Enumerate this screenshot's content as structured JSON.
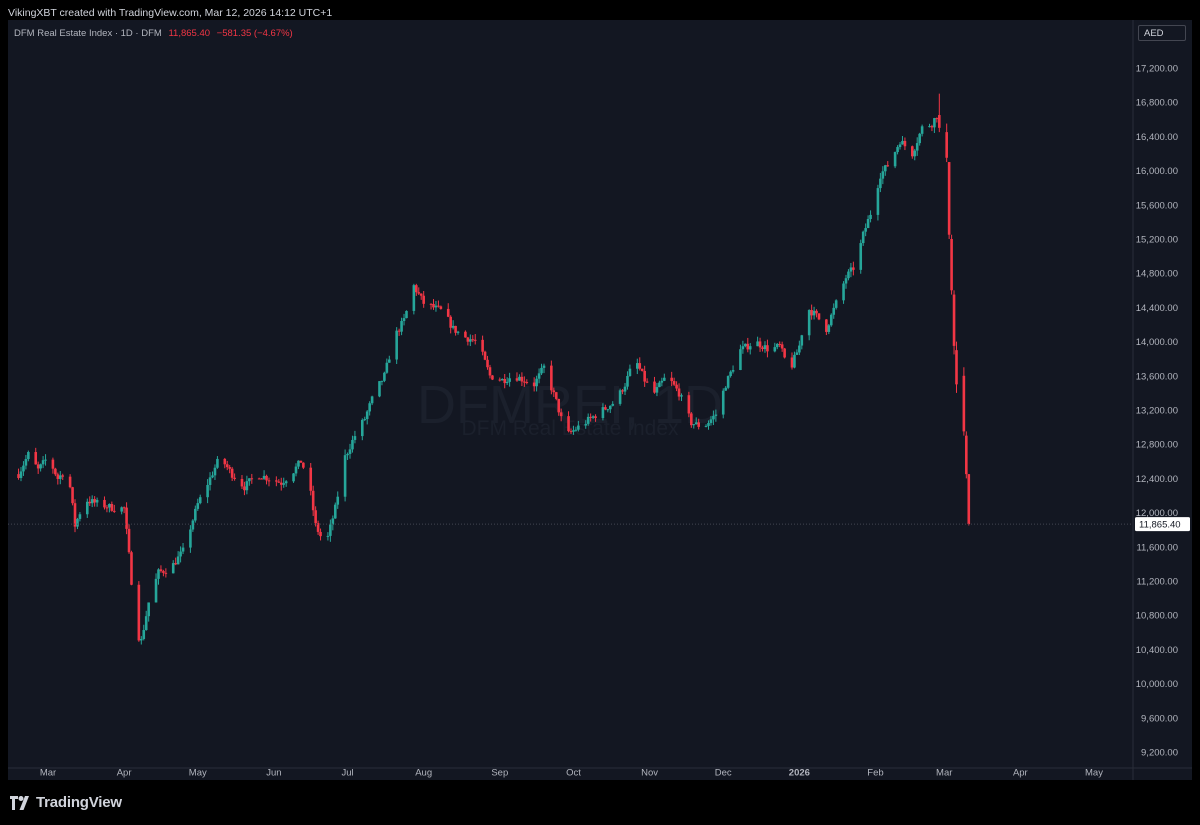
{
  "header": {
    "attribution": "VikingXBT created with TradingView.com, Mar 12, 2026 14:12 UTC+1"
  },
  "legend": {
    "symbol": "DFM Real Estate Index · 1D · DFM",
    "last": "11,865.40",
    "change": "−581.35 (−4.67%)"
  },
  "currency_button": "AED",
  "watermark": {
    "ticker": "DFMREI, 1D",
    "name": "DFM Real Estate Index"
  },
  "footer": {
    "brand": "TradingView"
  },
  "colors": {
    "background": "#131722",
    "up": "#26a69a",
    "down": "#f23645",
    "text": "#b2b5be"
  },
  "chart_data": {
    "type": "candlestick",
    "title": "DFM Real Estate Index · 1D · DFM",
    "ylim": [
      8800,
      17600
    ],
    "y_ticks": [
      "17,200.00",
      "16,800.00",
      "16,400.00",
      "16,000.00",
      "15,600.00",
      "15,200.00",
      "14,800.00",
      "14,400.00",
      "14,000.00",
      "13,600.00",
      "13,200.00",
      "12,800.00",
      "12,400.00",
      "12,000.00",
      "11,600.00",
      "11,200.00",
      "10,800.00",
      "10,400.00",
      "10,000.00",
      "9,600.00",
      "9,200.00"
    ],
    "x_ticks": [
      {
        "label": "Mar",
        "date": "2025-03-01"
      },
      {
        "label": "Apr",
        "date": "2025-04-01"
      },
      {
        "label": "May",
        "date": "2025-05-01"
      },
      {
        "label": "Jun",
        "date": "2025-06-01"
      },
      {
        "label": "Jul",
        "date": "2025-07-01"
      },
      {
        "label": "Aug",
        "date": "2025-08-01"
      },
      {
        "label": "Sep",
        "date": "2025-09-01"
      },
      {
        "label": "Oct",
        "date": "2025-10-01"
      },
      {
        "label": "Nov",
        "date": "2025-11-01"
      },
      {
        "label": "Dec",
        "date": "2025-12-01"
      },
      {
        "label": "2026",
        "date": "2026-01-01"
      },
      {
        "label": "Feb",
        "date": "2026-02-01"
      },
      {
        "label": "Mar",
        "date": "2026-03-01"
      },
      {
        "label": "Apr",
        "date": "2026-04-01"
      },
      {
        "label": "May",
        "date": "2026-05-01"
      }
    ],
    "last_price_label": "11,865.40",
    "last_price": 11865.4,
    "series": [
      {
        "anchors": [
          [
            "2025-02-17",
            12450
          ],
          [
            "2025-02-21",
            12680
          ],
          [
            "2025-02-25",
            12500
          ],
          [
            "2025-03-01",
            12650
          ],
          [
            "2025-03-05",
            12400
          ],
          [
            "2025-03-09",
            12520
          ],
          [
            "2025-03-12",
            11850
          ],
          [
            "2025-03-16",
            12150
          ],
          [
            "2025-03-22",
            12100
          ],
          [
            "2025-03-28",
            12050
          ],
          [
            "2025-04-01",
            12050
          ],
          [
            "2025-04-03",
            11500
          ],
          [
            "2025-04-06",
            10600
          ],
          [
            "2025-04-08",
            10500
          ],
          [
            "2025-04-11",
            10950
          ],
          [
            "2025-04-15",
            11300
          ],
          [
            "2025-04-20",
            11350
          ],
          [
            "2025-04-25",
            11550
          ],
          [
            "2025-05-01",
            12100
          ],
          [
            "2025-05-06",
            12400
          ],
          [
            "2025-05-10",
            12650
          ],
          [
            "2025-05-15",
            12450
          ],
          [
            "2025-05-20",
            12300
          ],
          [
            "2025-05-25",
            12450
          ],
          [
            "2025-05-30",
            12400
          ],
          [
            "2025-06-04",
            12350
          ],
          [
            "2025-06-08",
            12450
          ],
          [
            "2025-06-12",
            12600
          ],
          [
            "2025-06-15",
            12400
          ],
          [
            "2025-06-18",
            11850
          ],
          [
            "2025-06-22",
            11600
          ],
          [
            "2025-06-26",
            12050
          ],
          [
            "2025-06-30",
            12650
          ],
          [
            "2025-07-04",
            12900
          ],
          [
            "2025-07-08",
            13100
          ],
          [
            "2025-07-12",
            13400
          ],
          [
            "2025-07-16",
            13600
          ],
          [
            "2025-07-20",
            14050
          ],
          [
            "2025-07-24",
            14250
          ],
          [
            "2025-07-28",
            14650
          ],
          [
            "2025-08-01",
            14450
          ],
          [
            "2025-08-05",
            14400
          ],
          [
            "2025-08-09",
            14350
          ],
          [
            "2025-08-13",
            14150
          ],
          [
            "2025-08-18",
            14050
          ],
          [
            "2025-08-23",
            14000
          ],
          [
            "2025-08-28",
            13600
          ],
          [
            "2025-09-02",
            13550
          ],
          [
            "2025-09-07",
            13600
          ],
          [
            "2025-09-11",
            13550
          ],
          [
            "2025-09-15",
            13500
          ],
          [
            "2025-09-19",
            13700
          ],
          [
            "2025-09-24",
            13300
          ],
          [
            "2025-09-28",
            12900
          ],
          [
            "2025-10-03",
            13000
          ],
          [
            "2025-10-08",
            13100
          ],
          [
            "2025-10-13",
            13200
          ],
          [
            "2025-10-18",
            13300
          ],
          [
            "2025-10-22",
            13500
          ],
          [
            "2025-10-26",
            13800
          ],
          [
            "2025-10-30",
            13550
          ],
          [
            "2025-11-03",
            13400
          ],
          [
            "2025-11-08",
            13600
          ],
          [
            "2025-11-13",
            13400
          ],
          [
            "2025-11-18",
            13050
          ],
          [
            "2025-11-23",
            13000
          ],
          [
            "2025-11-28",
            13150
          ],
          [
            "2025-12-02",
            13500
          ],
          [
            "2025-12-08",
            13900
          ],
          [
            "2025-12-14",
            14000
          ],
          [
            "2025-12-20",
            13900
          ],
          [
            "2025-12-24",
            13950
          ],
          [
            "2025-12-28",
            13650
          ],
          [
            "2026-01-01",
            13950
          ],
          [
            "2026-01-04",
            14400
          ],
          [
            "2026-01-08",
            14300
          ],
          [
            "2026-01-12",
            14150
          ],
          [
            "2026-01-16",
            14450
          ],
          [
            "2026-01-20",
            14750
          ],
          [
            "2026-01-24",
            14900
          ],
          [
            "2026-01-27",
            15250
          ],
          [
            "2026-01-30",
            15500
          ],
          [
            "2026-02-03",
            15950
          ],
          [
            "2026-02-07",
            16100
          ],
          [
            "2026-02-11",
            16350
          ],
          [
            "2026-02-16",
            16200
          ],
          [
            "2026-02-20",
            16500
          ],
          [
            "2026-02-24",
            16550
          ],
          [
            "2026-02-26",
            16650
          ],
          [
            "2026-02-27",
            16500
          ]
        ],
        "crash_candles": [
          {
            "date": "2026-02-27",
            "o": 16650,
            "h": 16900,
            "l": 16450,
            "c": 16500
          },
          {
            "date": "2026-03-02",
            "o": 16450,
            "h": 16550,
            "l": 16100,
            "c": 16150
          },
          {
            "date": "2026-03-03",
            "o": 16100,
            "h": 16100,
            "l": 15200,
            "c": 15250
          },
          {
            "date": "2026-03-04",
            "o": 15200,
            "h": 15250,
            "l": 14550,
            "c": 14600
          },
          {
            "date": "2026-03-05",
            "o": 14550,
            "h": 14600,
            "l": 13850,
            "c": 13950
          },
          {
            "date": "2026-03-06",
            "o": 13900,
            "h": 14000,
            "l": 13400,
            "c": 13500
          },
          {
            "date": "2026-03-09",
            "o": 13600,
            "h": 13700,
            "l": 12900,
            "c": 12950
          },
          {
            "date": "2026-03-10",
            "o": 12900,
            "h": 12950,
            "l": 12400,
            "c": 12450
          },
          {
            "date": "2026-03-11",
            "o": 12450,
            "h": 12450,
            "l": 11850,
            "c": 11865.4
          }
        ]
      }
    ]
  }
}
